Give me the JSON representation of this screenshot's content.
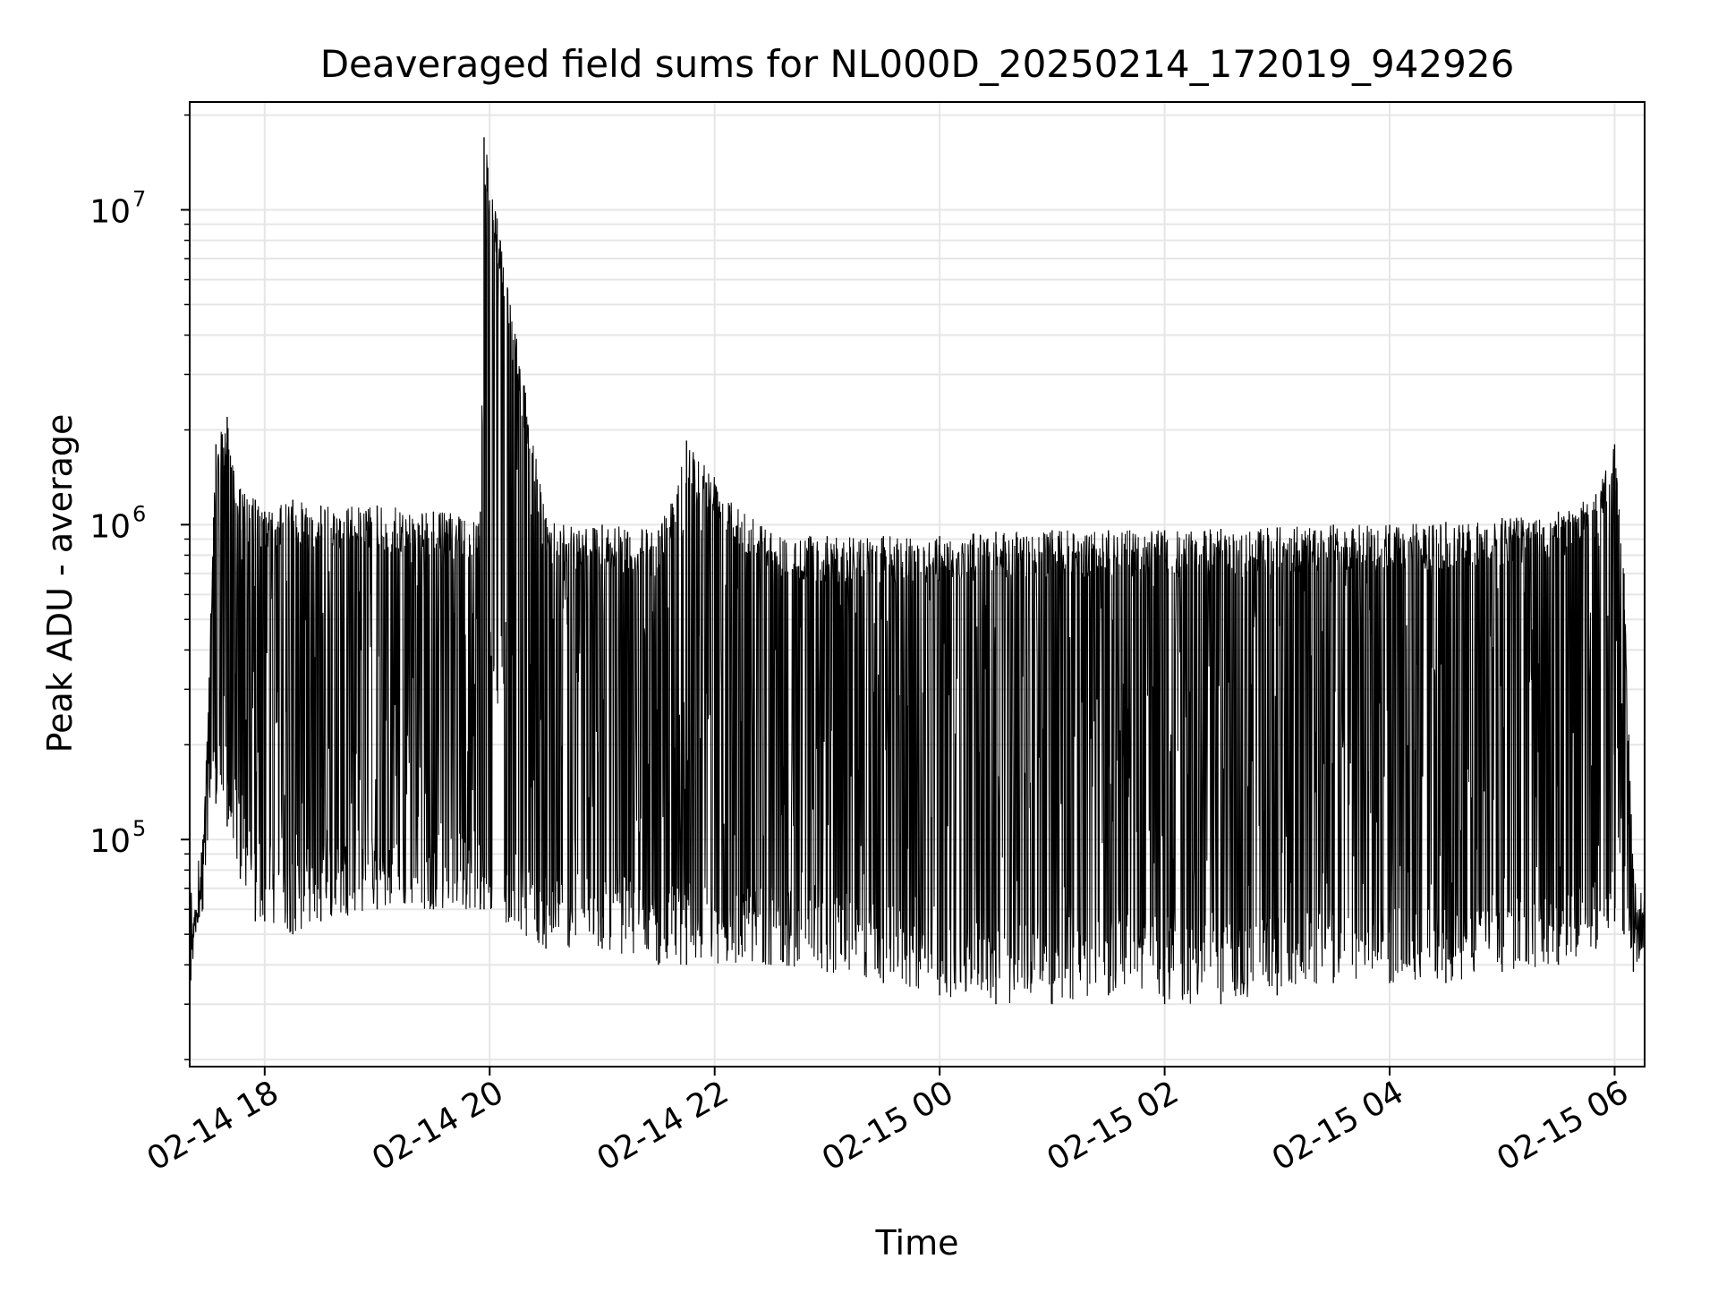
{
  "chart_data": {
    "type": "line",
    "title": "Deaveraged field sums for NL000D_20250214_172019_942926",
    "xlabel": "Time",
    "ylabel": "Peak ADU - average",
    "y_scale": "log",
    "xlim": [
      "2025-02-14 17:20",
      "2025-02-15 06:16"
    ],
    "ylim": [
      19000,
      22000000
    ],
    "grid": true,
    "line_color": "#000000",
    "grid_color": "#e6e6e6",
    "x_ticks": [
      {
        "value": "2025-02-14 18:00",
        "label": "02-14 18"
      },
      {
        "value": "2025-02-14 20:00",
        "label": "02-14 20"
      },
      {
        "value": "2025-02-14 22:00",
        "label": "02-14 22"
      },
      {
        "value": "2025-02-15 00:00",
        "label": "02-15 00"
      },
      {
        "value": "2025-02-15 02:00",
        "label": "02-15 02"
      },
      {
        "value": "2025-02-15 04:00",
        "label": "02-15 04"
      },
      {
        "value": "2025-02-15 06:00",
        "label": "02-15 06"
      }
    ],
    "y_ticks": [
      {
        "value": 100000,
        "base": "10",
        "exp": "5"
      },
      {
        "value": 1000000,
        "base": "10",
        "exp": "6"
      },
      {
        "value": 10000000,
        "base": "10",
        "exp": "7"
      }
    ],
    "series": [
      {
        "x": [
          "2025-02-14 17:20",
          "2025-02-14 17:27",
          "2025-02-14 17:34",
          "2025-02-14 17:40",
          "2025-02-14 17:47",
          "2025-02-14 17:55",
          "2025-02-14 18:00",
          "2025-02-14 18:15",
          "2025-02-14 18:30",
          "2025-02-14 19:00",
          "2025-02-14 19:30",
          "2025-02-14 19:55",
          "2025-02-14 19:57",
          "2025-02-14 20:30",
          "2025-02-14 21:00",
          "2025-02-14 21:30",
          "2025-02-14 21:45",
          "2025-02-14 22:30",
          "2025-02-14 23:00",
          "2025-02-14 23:30",
          "2025-02-15 00:00",
          "2025-02-15 00:30",
          "2025-02-15 01:00",
          "2025-02-15 01:30",
          "2025-02-15 02:00",
          "2025-02-15 02:30",
          "2025-02-15 03:00",
          "2025-02-15 03:30",
          "2025-02-15 04:00",
          "2025-02-15 04:30",
          "2025-02-15 05:00",
          "2025-02-15 05:30",
          "2025-02-15 05:50",
          "2025-02-15 06:00",
          "2025-02-15 06:05",
          "2025-02-15 06:10",
          "2025-02-15 06:16"
        ],
        "y_high": [
          45000,
          100000,
          1800000,
          2200000,
          1300000,
          1200000,
          1100000,
          1200000,
          1150000,
          1150000,
          1100000,
          1100000,
          17000000,
          1050000,
          1000000,
          960000,
          1850000,
          940000,
          920000,
          920000,
          920000,
          950000,
          960000,
          960000,
          960000,
          970000,
          980000,
          1000000,
          1000000,
          1020000,
          1050000,
          1100000,
          1250000,
          1800000,
          700000,
          80000,
          65000
        ],
        "y_low": [
          40000,
          60000,
          130000,
          110000,
          75000,
          55000,
          55000,
          50000,
          55000,
          60000,
          60000,
          60000,
          60000,
          45000,
          45000,
          40000,
          40000,
          40000,
          38000,
          35000,
          32000,
          30000,
          30000,
          32000,
          30000,
          30000,
          32000,
          35000,
          35000,
          35000,
          38000,
          40000,
          45000,
          55000,
          50000,
          38000,
          42000
        ]
      }
    ]
  }
}
